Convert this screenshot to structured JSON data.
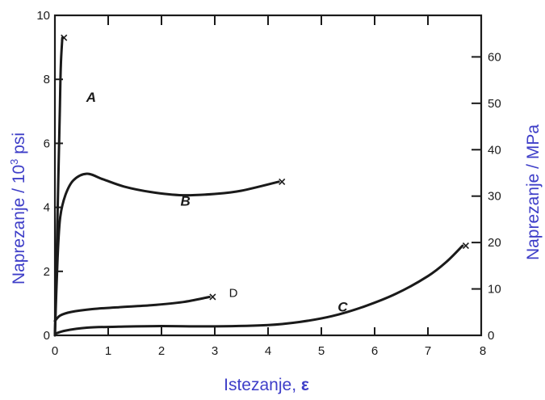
{
  "colors": {
    "axis_title": "#3e3ec8",
    "ink": "#1a1a1a",
    "background": "#ffffff"
  },
  "chart_data": {
    "type": "line",
    "xlabel_text": "Istezanje, ",
    "xlabel_symbol": "ε",
    "ylabel_left": {
      "base": "Naprezanje /  10",
      "sup": "3",
      "unit": " psi"
    },
    "ylabel_right": "Naprezanje / MPa",
    "x_ticks": [
      "0",
      "1",
      "2",
      "3",
      "4",
      "5",
      "6",
      "7",
      "8"
    ],
    "y_ticks_left": [
      "0",
      "2",
      "4",
      "6",
      "8",
      "10"
    ],
    "y_ticks_right": [
      "0",
      "10",
      "20",
      "30",
      "40",
      "50",
      "60"
    ],
    "xlim": [
      0,
      8
    ],
    "ylim_left": [
      0,
      10
    ],
    "ylim_right_mpa": [
      0,
      68.95
    ],
    "grid": false,
    "series": [
      {
        "name": "A",
        "label_at": [
          0.68,
          7.3
        ],
        "break_marker": true,
        "points": [
          [
            0,
            0
          ],
          [
            0.03,
            2.2
          ],
          [
            0.06,
            4.6
          ],
          [
            0.09,
            6.8
          ],
          [
            0.11,
            8.4
          ],
          [
            0.14,
            9.3
          ]
        ]
      },
      {
        "name": "B",
        "label_at": [
          2.45,
          4.05
        ],
        "break_marker": true,
        "points": [
          [
            0,
            0
          ],
          [
            0.05,
            2.4
          ],
          [
            0.1,
            3.7
          ],
          [
            0.2,
            4.4
          ],
          [
            0.35,
            4.85
          ],
          [
            0.6,
            5.05
          ],
          [
            0.9,
            4.88
          ],
          [
            1.3,
            4.65
          ],
          [
            1.8,
            4.48
          ],
          [
            2.4,
            4.38
          ],
          [
            3.0,
            4.42
          ],
          [
            3.5,
            4.52
          ],
          [
            4.2,
            4.8
          ]
        ]
      },
      {
        "name": "C",
        "label_at": [
          5.4,
          0.75
        ],
        "break_marker": true,
        "points": [
          [
            0,
            0.05
          ],
          [
            0.2,
            0.15
          ],
          [
            0.6,
            0.24
          ],
          [
            1.2,
            0.27
          ],
          [
            2.0,
            0.29
          ],
          [
            3.0,
            0.28
          ],
          [
            4.0,
            0.32
          ],
          [
            4.6,
            0.42
          ],
          [
            5.2,
            0.6
          ],
          [
            5.8,
            0.9
          ],
          [
            6.4,
            1.3
          ],
          [
            7.0,
            1.85
          ],
          [
            7.35,
            2.3
          ],
          [
            7.65,
            2.8
          ]
        ]
      },
      {
        "name": "D",
        "label_at": [
          3.35,
          1.2
        ],
        "break_marker": true,
        "points": [
          [
            0,
            0.45
          ],
          [
            0.1,
            0.62
          ],
          [
            0.3,
            0.73
          ],
          [
            0.7,
            0.82
          ],
          [
            1.2,
            0.88
          ],
          [
            1.8,
            0.94
          ],
          [
            2.4,
            1.04
          ],
          [
            2.9,
            1.2
          ]
        ]
      }
    ]
  }
}
